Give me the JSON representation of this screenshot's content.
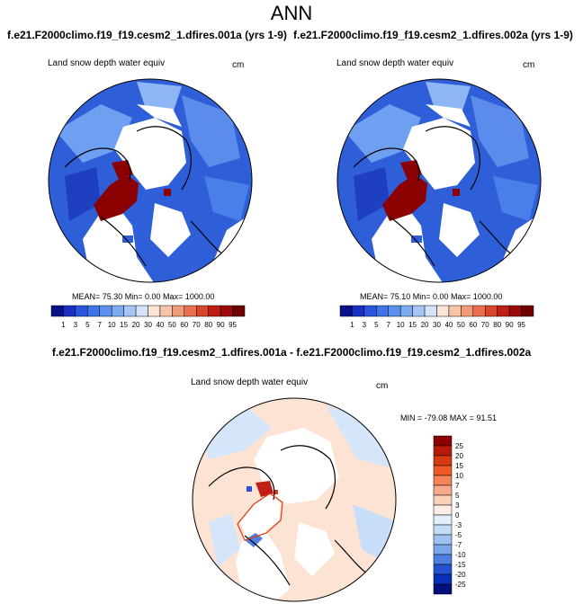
{
  "figure": {
    "title": "ANN",
    "panel_left": {
      "case_title": "f.e21.F2000climo.f19_f19.cesm2_1.dfires.001a (yrs 1-9)",
      "variable": "Land snow depth water equiv",
      "units": "cm",
      "stats": "MEAN= 75.30  Min=   0.00  Max= 1000.00"
    },
    "panel_right": {
      "case_title": "f.e21.F2000climo.f19_f19.cesm2_1.dfires.002a (yrs 1-9)",
      "variable": "Land snow depth water equiv",
      "units": "cm",
      "stats": "MEAN=  75.10  Min=   0.00  Max= 1000.00"
    },
    "panel_diff": {
      "title": "f.e21.F2000climo.f19_f19.cesm2_1.dfires.001a - f.e21.F2000climo.f19_f19.cesm2_1.dfires.002a",
      "variable": "Land snow depth water equiv",
      "units": "cm",
      "stats": "MIN = -79.08 MAX =  91.51"
    },
    "abs_colorbar": {
      "labels": [
        "1",
        "3",
        "5",
        "7",
        "10",
        "15",
        "20",
        "30",
        "40",
        "50",
        "60",
        "70",
        "80",
        "90",
        "95"
      ],
      "colors": [
        "#08108a",
        "#1a2fc4",
        "#2b54e0",
        "#3f74e8",
        "#5a90ee",
        "#7eaaf2",
        "#a7c6f6",
        "#d3e4fa",
        "#fbe4d5",
        "#f7c4a8",
        "#f19a78",
        "#e8704c",
        "#d94528",
        "#c01e14",
        "#9c0a0a",
        "#6e0000"
      ]
    },
    "diff_colorbar": {
      "labels": [
        "25",
        "20",
        "15",
        "10",
        "7",
        "5",
        "3",
        "0",
        "-3",
        "-5",
        "-7",
        "-10",
        "-15",
        "-20",
        "-25"
      ],
      "colors": [
        "#8b0000",
        "#b81a0a",
        "#d93a14",
        "#ee5a28",
        "#f5845a",
        "#f8ab8a",
        "#fbd0b8",
        "#fdeee3",
        "#e1eefb",
        "#c3dcf7",
        "#9fc3f1",
        "#7aa6ea",
        "#4f7fe0",
        "#2452d2",
        "#0b2fb8",
        "#03107a"
      ]
    }
  }
}
